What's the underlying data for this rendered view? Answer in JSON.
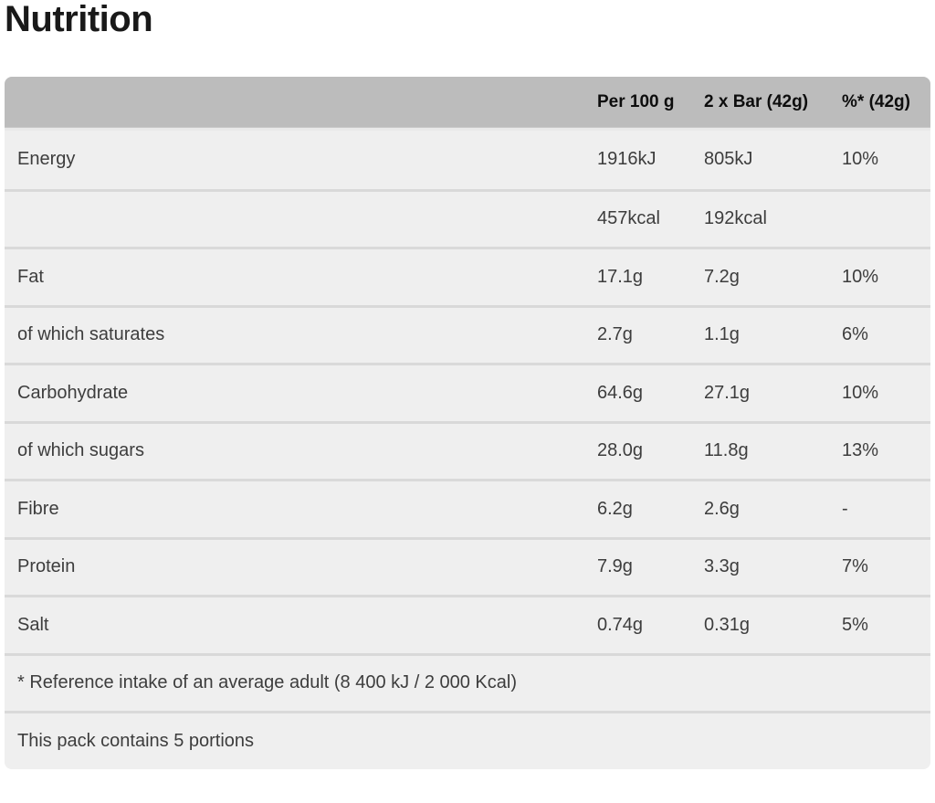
{
  "page": {
    "title": "Nutrition"
  },
  "table": {
    "columns": {
      "label": "",
      "per100": "Per 100 g",
      "perBar": "2 x Bar (42g)",
      "pct": "%* (42g)"
    },
    "rows": [
      {
        "label": "Energy",
        "per100": "1916kJ",
        "perBar": "805kJ",
        "pct": "10%"
      },
      {
        "label": "",
        "per100": "457kcal",
        "perBar": "192kcal",
        "pct": ""
      },
      {
        "label": "Fat",
        "per100": "17.1g",
        "perBar": "7.2g",
        "pct": "10%"
      },
      {
        "label": "of which saturates",
        "per100": "2.7g",
        "perBar": "1.1g",
        "pct": "6%"
      },
      {
        "label": "Carbohydrate",
        "per100": "64.6g",
        "perBar": "27.1g",
        "pct": "10%"
      },
      {
        "label": "of which sugars",
        "per100": "28.0g",
        "perBar": "11.8g",
        "pct": "13%"
      },
      {
        "label": "Fibre",
        "per100": "6.2g",
        "perBar": "2.6g",
        "pct": "-"
      },
      {
        "label": "Protein",
        "per100": "7.9g",
        "perBar": "3.3g",
        "pct": "7%"
      },
      {
        "label": "Salt",
        "per100": "0.74g",
        "perBar": "0.31g",
        "pct": "5%"
      }
    ],
    "footnotes": {
      "reference": "* Reference intake of an average adult (8 400 kJ / 2 000 Kcal)",
      "portions": "This pack contains 5 portions"
    }
  },
  "colors": {
    "header_bg": "#bcbcbc",
    "row_bg": "#efefef",
    "divider": "#d9d9d9",
    "title_text": "#191919",
    "header_text": "#0d0d0d",
    "body_text": "#3d3d3d"
  }
}
